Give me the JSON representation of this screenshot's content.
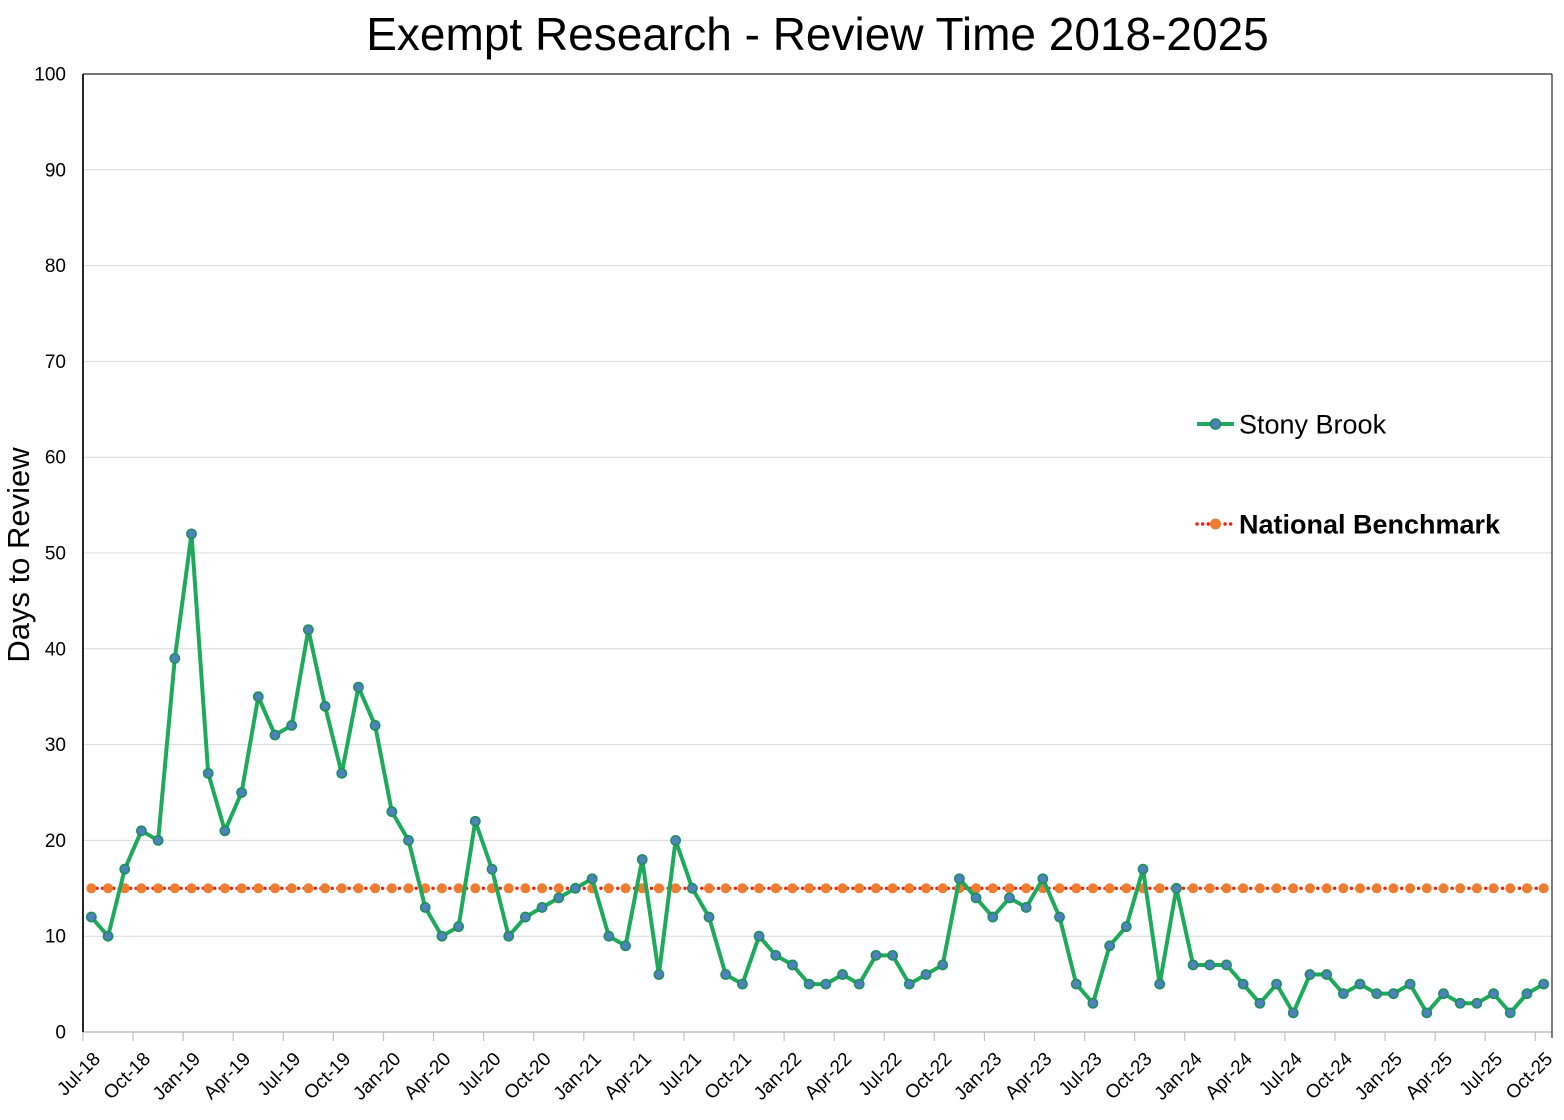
{
  "chart_data": {
    "type": "line",
    "title": "Exempt Research - Review Time 2018-2025",
    "ylabel": "Days to Review",
    "xlabel": "",
    "ylim": [
      0,
      100
    ],
    "y_tick_step": 10,
    "grid": "horizontal",
    "legend_position": "right-inside",
    "x": [
      "Jul-18",
      "Aug-18",
      "Sep-18",
      "Oct-18",
      "Nov-18",
      "Dec-18",
      "Jan-19",
      "Feb-19",
      "Mar-19",
      "Apr-19",
      "May-19",
      "Jun-19",
      "Jul-19",
      "Aug-19",
      "Sep-19",
      "Oct-19",
      "Nov-19",
      "Dec-19",
      "Jan-20",
      "Feb-20",
      "Mar-20",
      "Apr-20",
      "May-20",
      "Jun-20",
      "Jul-20",
      "Aug-20",
      "Sep-20",
      "Oct-20",
      "Nov-20",
      "Dec-20",
      "Jan-21",
      "Feb-21",
      "Mar-21",
      "Apr-21",
      "May-21",
      "Jun-21",
      "Jul-21",
      "Aug-21",
      "Sep-21",
      "Oct-21",
      "Nov-21",
      "Dec-21",
      "Jan-22",
      "Feb-22",
      "Mar-22",
      "Apr-22",
      "May-22",
      "Jun-22",
      "Jul-22",
      "Aug-22",
      "Sep-22",
      "Oct-22",
      "Nov-22",
      "Dec-22",
      "Jan-23",
      "Feb-23",
      "Mar-23",
      "Apr-23",
      "May-23",
      "Jun-23",
      "Jul-23",
      "Aug-23",
      "Sep-23",
      "Oct-23",
      "Nov-23",
      "Dec-23",
      "Jan-24",
      "Feb-24",
      "Mar-24",
      "Apr-24",
      "May-24",
      "Jun-24",
      "Jul-24",
      "Aug-24",
      "Sep-24",
      "Oct-24",
      "Nov-24",
      "Dec-24",
      "Jan-25",
      "Feb-25",
      "Mar-25",
      "Apr-25",
      "May-25",
      "Jun-25",
      "Jul-25",
      "Aug-25",
      "Sep-25",
      "Oct-25"
    ],
    "x_tick_labels": [
      "Jul-18",
      "Oct-18",
      "Jan-19",
      "Apr-19",
      "Jul-19",
      "Oct-19",
      "Jan-20",
      "Apr-20",
      "Jul-20",
      "Oct-20",
      "Jan-21",
      "Apr-21",
      "Jul-21",
      "Oct-21",
      "Jan-22",
      "Apr-22",
      "Jul-22",
      "Oct-22",
      "Jan-23",
      "Apr-23",
      "Jul-23",
      "Oct-23",
      "Jan-24",
      "Apr-24",
      "Jul-24",
      "Oct-24",
      "Jan-25",
      "Apr-25",
      "Jul-25",
      "Oct-25"
    ],
    "x_tick_every": 3,
    "series": [
      {
        "name": "Stony Brook",
        "line_color": "#1EAA5A",
        "marker_fill": "#4E81BD",
        "marker_edge": "#1B9058",
        "line_style": "solid",
        "values": [
          12,
          10,
          17,
          21,
          20,
          39,
          52,
          27,
          21,
          25,
          35,
          31,
          32,
          42,
          34,
          27,
          36,
          32,
          23,
          20,
          13,
          10,
          11,
          22,
          17,
          10,
          12,
          13,
          14,
          15,
          16,
          10,
          9,
          18,
          6,
          20,
          15,
          12,
          6,
          5,
          10,
          8,
          7,
          5,
          5,
          6,
          5,
          8,
          8,
          5,
          6,
          7,
          16,
          14,
          12,
          14,
          13,
          16,
          12,
          5,
          3,
          9,
          11,
          17,
          5,
          15,
          7,
          7,
          7,
          5,
          3,
          5,
          2,
          6,
          6,
          4,
          5,
          4,
          4,
          5,
          2,
          4,
          3,
          3,
          4,
          2,
          4,
          5
        ]
      },
      {
        "name": "National Benchmark",
        "line_color": "#F01E0F",
        "marker_fill": "#ED7D31",
        "marker_edge": "#ED7D31",
        "line_style": "dotted",
        "constant_value": 15,
        "legend_bold": true
      }
    ],
    "colors": {
      "gridline": "#D9D9D9",
      "x_axis": "#BFBFBF",
      "plot_border": "#262626",
      "text": "#000000"
    }
  }
}
